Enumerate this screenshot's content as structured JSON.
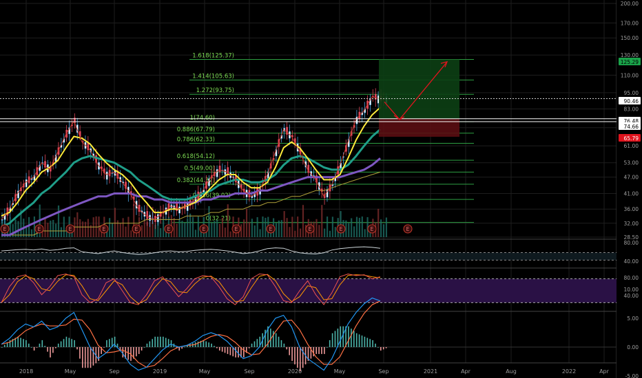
{
  "chart_data": {
    "type": "candlestick",
    "price_axis": {
      "ticks": [
        "200.00",
        "170.00",
        "150.00",
        "130.00",
        "110.00",
        "95.00",
        "83.00",
        "71.00",
        "61.00",
        "53.00",
        "47.00",
        "41.00",
        "36.00",
        "32.00",
        "28.50"
      ],
      "scale": "log",
      "range": [
        28.5,
        200
      ]
    },
    "price_badges": [
      {
        "value": "125.29",
        "color": "#1aa34a",
        "text_color": "#000000"
      },
      {
        "value": "90.46",
        "color": "#ffffff",
        "text_color": "#000000"
      },
      {
        "value": "76.48",
        "color": "#ffffff",
        "text_color": "#000000"
      },
      {
        "value": "74.66",
        "color": "#ffffff",
        "text_color": "#000000"
      },
      {
        "value": "65.79",
        "color": "#e0141e",
        "text_color": "#ffffff"
      }
    ],
    "fib_levels": [
      {
        "label": "1.618(125.37)",
        "value": 125.37
      },
      {
        "label": "1.414(105.63)",
        "value": 105.63
      },
      {
        "label": "1.272(93.75)",
        "value": 93.75
      },
      {
        "label": "1(74.60)",
        "value": 74.6
      },
      {
        "label": "0.886(67.79)",
        "value": 67.79
      },
      {
        "label": "0.786(62.33)",
        "value": 62.33
      },
      {
        "label": "0.618(54.12)",
        "value": 54.12
      },
      {
        "label": "0.5(49.00)",
        "value": 49.0
      },
      {
        "label": "0.382(44.32)",
        "value": 44.32
      },
      {
        "label": "0.236(39.02)",
        "value": 39.02
      },
      {
        "label": "0(32.21)",
        "value": 32.21
      }
    ],
    "x_axis": {
      "ticks": [
        "2018",
        "May",
        "Sep",
        "2019",
        "May",
        "Sep",
        "2020",
        "May",
        "Sep",
        "2021",
        "Apr",
        "Aug",
        "2022",
        "Apr"
      ]
    },
    "earnings_marker": "E",
    "rsi_axis": {
      "ticks": [
        "80.00",
        "40.00"
      ]
    },
    "stoch_axis": {
      "ticks": [
        "80.00",
        "40.00"
      ]
    },
    "macd_axis": {
      "ticks": [
        "10.00",
        "5.00",
        "0.00",
        "-5.00"
      ]
    },
    "series": [
      {
        "name": "close",
        "values": [
          33,
          36,
          41,
          45,
          47,
          53,
          50,
          58,
          67,
          75,
          63,
          59,
          52,
          48,
          49,
          45,
          41,
          36,
          34,
          33,
          35,
          37,
          36,
          37,
          39,
          42,
          47,
          50,
          49,
          46,
          42,
          40,
          42,
          48,
          58,
          70,
          66,
          58,
          50,
          46,
          40,
          44,
          52,
          63,
          76,
          82,
          92,
          90
        ]
      },
      {
        "name": "ma_fast",
        "values": [
          34,
          35,
          38,
          42,
          45,
          49,
          51,
          54,
          60,
          66,
          65,
          62,
          57,
          53,
          50,
          48,
          45,
          41,
          38,
          35,
          35,
          36,
          36,
          37,
          38,
          40,
          43,
          46,
          48,
          48,
          45,
          43,
          43,
          45,
          51,
          60,
          63,
          60,
          55,
          50,
          46,
          46,
          48,
          55,
          64,
          72,
          79,
          84
        ]
      },
      {
        "name": "ma_mid",
        "values": [
          31,
          32,
          34,
          36,
          38,
          41,
          43,
          46,
          49,
          53,
          55,
          56,
          55,
          54,
          53,
          51,
          49,
          46,
          44,
          42,
          40,
          39,
          39,
          39,
          40,
          41,
          42,
          44,
          45,
          46,
          46,
          45,
          45,
          46,
          48,
          52,
          55,
          56,
          55,
          53,
          51,
          50,
          50,
          52,
          56,
          61,
          66,
          70
        ]
      },
      {
        "name": "ma_slow",
        "values": [
          29,
          29,
          30,
          31,
          32,
          33,
          34,
          35,
          36,
          37,
          38,
          39,
          40,
          40,
          41,
          41,
          41,
          40,
          40,
          39,
          39,
          38,
          38,
          38,
          38,
          39,
          39,
          40,
          40,
          41,
          41,
          41,
          42,
          42,
          43,
          44,
          45,
          46,
          47,
          47,
          47,
          47,
          47,
          48,
          49,
          50,
          52,
          55
        ]
      },
      {
        "name": "ma_long",
        "values": [
          29,
          29,
          29,
          29,
          29,
          30,
          30,
          30,
          30,
          31,
          31,
          31,
          31,
          32,
          32,
          32,
          32,
          32,
          33,
          33,
          33,
          33,
          33,
          34,
          34,
          34,
          35,
          35,
          36,
          36,
          36,
          37,
          37,
          38,
          38,
          39,
          40,
          40,
          41,
          42,
          42,
          43,
          44,
          45,
          46,
          47,
          48,
          49
        ]
      },
      {
        "name": "rsi",
        "values": [
          55,
          58,
          62,
          64,
          60,
          66,
          58,
          62,
          70,
          72,
          50,
          45,
          40,
          48,
          55,
          46,
          40,
          35,
          38,
          45,
          52,
          55,
          50,
          52,
          58,
          62,
          64,
          60,
          55,
          48,
          40,
          45,
          55,
          68,
          72,
          70,
          55,
          45,
          40,
          38,
          45,
          60,
          68,
          72,
          76,
          78,
          75,
          70
        ]
      },
      {
        "name": "stoch",
        "values": [
          20,
          60,
          85,
          90,
          70,
          40,
          60,
          88,
          92,
          85,
          40,
          20,
          30,
          70,
          80,
          50,
          20,
          15,
          40,
          75,
          85,
          60,
          35,
          55,
          80,
          88,
          85,
          60,
          30,
          15,
          35,
          80,
          92,
          90,
          60,
          25,
          20,
          50,
          75,
          40,
          15,
          45,
          85,
          92,
          88,
          90,
          80,
          85
        ]
      },
      {
        "name": "macd",
        "values": [
          0.5,
          1.5,
          3,
          4,
          3.5,
          4.5,
          3,
          3.5,
          5,
          6,
          3,
          0,
          -2,
          -1,
          0.5,
          -1,
          -3,
          -4,
          -3.5,
          -2,
          -0.5,
          0.5,
          0,
          0.3,
          1,
          2,
          2.5,
          2,
          1,
          -0.5,
          -2,
          -1.5,
          0,
          3,
          5,
          5.5,
          3.5,
          0,
          -2,
          -3,
          -4,
          -2,
          1,
          4,
          6,
          7.5,
          8.5,
          8
        ]
      }
    ]
  }
}
